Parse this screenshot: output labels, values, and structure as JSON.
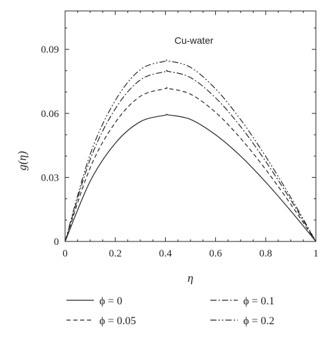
{
  "chart_data": {
    "type": "line",
    "title": "",
    "annotation": "Cu-water",
    "xlabel": "η",
    "ylabel": "g(η)",
    "xlim": [
      0,
      1
    ],
    "ylim": [
      0,
      0.108
    ],
    "x_ticks": [
      0,
      0.2,
      0.4,
      0.6,
      0.8,
      1
    ],
    "x_tick_labels": [
      "0",
      "0.2",
      "0.4",
      "0.6",
      "0.8",
      "1"
    ],
    "y_ticks": [
      0,
      0.03,
      0.06,
      0.09
    ],
    "y_tick_labels": [
      "0",
      "0.03",
      "0.06",
      "0.09"
    ],
    "legend_placement": "below",
    "series": [
      {
        "name": "ϕ = 0",
        "dash": "solid",
        "x": [
          0,
          0.1,
          0.2,
          0.3,
          0.4,
          0.41,
          0.5,
          0.6,
          0.7,
          0.8,
          0.9,
          1
        ],
        "y": [
          0,
          0.0282,
          0.046,
          0.0561,
          0.0592,
          0.0593,
          0.0572,
          0.05,
          0.04,
          0.0278,
          0.0143,
          0
        ]
      },
      {
        "name": "ϕ = 0.05",
        "dash": "dashed",
        "x": [
          0,
          0.1,
          0.2,
          0.3,
          0.4,
          0.41,
          0.5,
          0.6,
          0.7,
          0.8,
          0.9,
          1
        ],
        "y": [
          0,
          0.0345,
          0.0557,
          0.068,
          0.0716,
          0.0717,
          0.069,
          0.0605,
          0.0483,
          0.0337,
          0.0174,
          0
        ]
      },
      {
        "name": "ϕ = 0.1",
        "dash": "dashdot",
        "x": [
          0,
          0.1,
          0.2,
          0.3,
          0.4,
          0.41,
          0.5,
          0.6,
          0.7,
          0.8,
          0.9,
          1
        ],
        "y": [
          0,
          0.0384,
          0.0621,
          0.0757,
          0.0796,
          0.0797,
          0.0768,
          0.0673,
          0.0538,
          0.0375,
          0.0194,
          0
        ]
      },
      {
        "name": "ϕ = 0.2",
        "dash": "dashdotdot",
        "x": [
          0,
          0.1,
          0.2,
          0.3,
          0.4,
          0.41,
          0.5,
          0.6,
          0.7,
          0.8,
          0.9,
          1
        ],
        "y": [
          0,
          0.0408,
          0.066,
          0.0805,
          0.0845,
          0.0846,
          0.0816,
          0.0715,
          0.0571,
          0.0398,
          0.0206,
          0
        ]
      }
    ]
  }
}
